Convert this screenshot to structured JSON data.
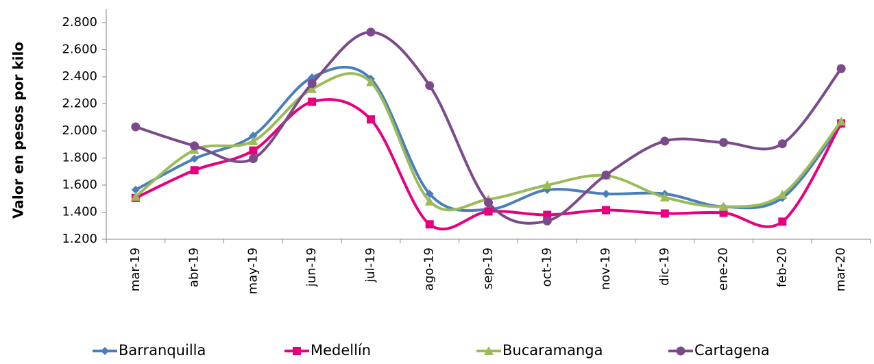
{
  "chart_data": {
    "type": "line",
    "y_label": "Valor en pesos por kilo",
    "smooth": true,
    "categories": [
      "mar-19",
      "abr-19",
      "may-19",
      "jun-19",
      "jul-19",
      "ago-19",
      "sep-19",
      "oct-19",
      "nov-19",
      "dic-19",
      "ene-20",
      "feb-20",
      "mar-20"
    ],
    "series": [
      {
        "name": "Barranquilla",
        "color": "#4a7ebb",
        "marker": "diamond",
        "values": [
          1565,
          1795,
          1965,
          2395,
          2385,
          1535,
          1420,
          1565,
          1535,
          1535,
          1440,
          1505,
          2050
        ]
      },
      {
        "name": "Medellín",
        "color": "#e6007e",
        "marker": "square",
        "values": [
          1505,
          1710,
          1855,
          2215,
          2085,
          1310,
          1405,
          1380,
          1415,
          1390,
          1395,
          1330,
          2055
        ]
      },
      {
        "name": "Bucaramanga",
        "color": "#9bbb59",
        "marker": "triangle",
        "values": [
          1515,
          1860,
          1925,
          2310,
          2360,
          1480,
          1495,
          1600,
          1670,
          1510,
          1440,
          1530,
          2070
        ]
      },
      {
        "name": "Cartagena",
        "color": "#7b4a8b",
        "marker": "circle",
        "values": [
          2030,
          1890,
          1795,
          2350,
          2730,
          2335,
          1470,
          1335,
          1675,
          1925,
          1915,
          1905,
          2460
        ]
      }
    ],
    "ylim": [
      1200,
      2800
    ],
    "yticks": [
      {
        "value": 1200,
        "label": "1.200"
      },
      {
        "value": 1400,
        "label": "1.400"
      },
      {
        "value": 1600,
        "label": "1.600"
      },
      {
        "value": 1800,
        "label": "1.800"
      },
      {
        "value": 2000,
        "label": "2.000"
      },
      {
        "value": 2200,
        "label": "2.200"
      },
      {
        "value": 2400,
        "label": "2.400"
      },
      {
        "value": 2600,
        "label": "2.600"
      },
      {
        "value": 2800,
        "label": "2.800"
      }
    ],
    "grid": false,
    "legend": "bottom"
  }
}
